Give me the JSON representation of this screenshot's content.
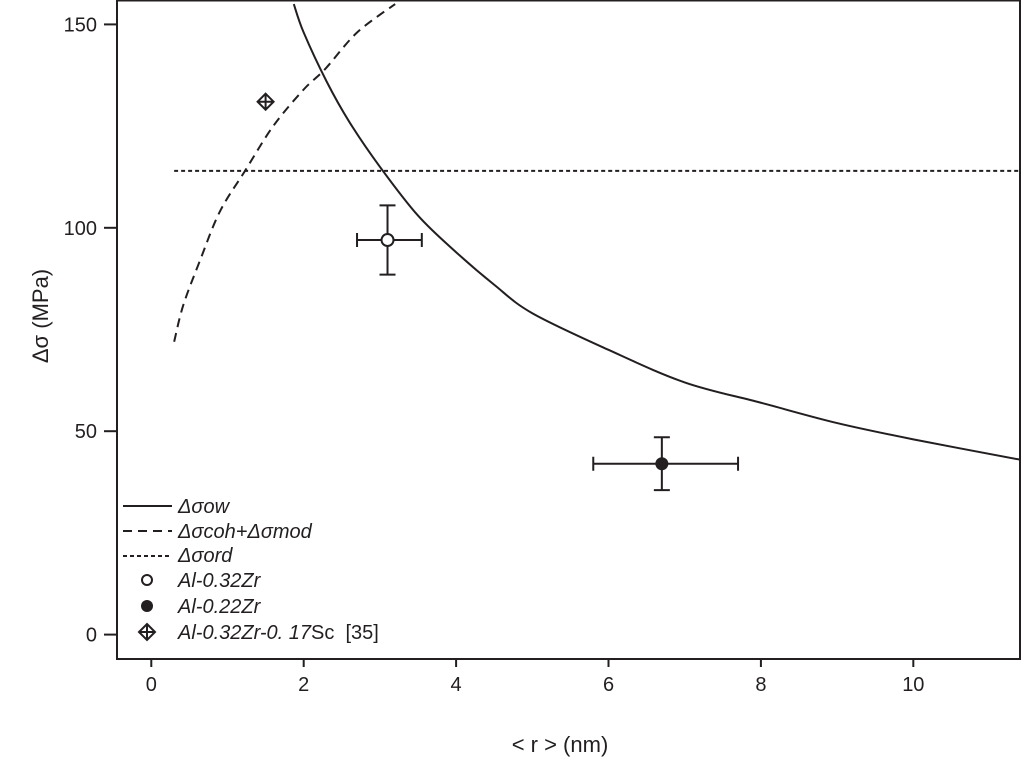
{
  "chart_data": {
    "type": "line",
    "title": "",
    "xlabel": "< r > (nm)",
    "ylabel": "Δσ (MPa)",
    "xlim": [
      -0.45,
      11.4
    ],
    "ylim": [
      -6,
      156
    ],
    "x_ticks": [
      "0",
      "2",
      "4",
      "6",
      "8",
      "10"
    ],
    "x_tick_values": [
      0,
      2,
      4,
      6,
      8,
      10
    ],
    "y_ticks": [
      "0",
      "50",
      "100",
      "150"
    ],
    "y_tick_values": [
      0,
      50,
      100,
      150
    ],
    "grid": false,
    "legend_placement": "bottom-left",
    "color": "#231f20",
    "series": [
      {
        "name": "Δσow",
        "style": "solid",
        "x": [
          1.87,
          2.0,
          2.3,
          2.6,
          3.0,
          3.5,
          4.0,
          4.5,
          5.0,
          6.0,
          7.0,
          8.0,
          9.0,
          10.0,
          11.4
        ],
        "y": [
          155,
          148,
          136,
          126,
          115,
          103,
          94,
          86,
          79,
          70,
          62,
          57,
          52,
          48,
          43
        ]
      },
      {
        "name": "Δσcoh+Δσmod",
        "style": "dashed",
        "x": [
          0.3,
          0.42,
          0.64,
          0.9,
          1.23,
          1.6,
          2.0,
          2.28,
          2.7,
          3.2
        ],
        "y": [
          72,
          81,
          92,
          104,
          114,
          125,
          134,
          139,
          148,
          155
        ]
      },
      {
        "name": "Δσord",
        "style": "dotted",
        "x": [
          0.3,
          11.4
        ],
        "y": [
          114,
          114
        ]
      }
    ],
    "points": [
      {
        "name": "Al-0.32Zr",
        "marker": "open-circle",
        "x": 3.1,
        "y": 97,
        "x_err": [
          2.7,
          3.55
        ],
        "y_err": [
          88.5,
          105.5
        ]
      },
      {
        "name": "Al-0.22Zr",
        "marker": "filled-circle",
        "x": 6.7,
        "y": 42,
        "x_err": [
          5.8,
          7.7
        ],
        "y_err": [
          35.5,
          48.5
        ]
      },
      {
        "name": "Al-0.32Zr-0. 17Sc  [35]",
        "marker": "crossed-diamond",
        "x": 1.5,
        "y": 131
      }
    ],
    "legend": {
      "ow": "Δσow",
      "cohmod": "Δσcoh+Δσmod",
      "ord": "Δσord",
      "p1": "Al-0.32Zr",
      "p2": "Al-0.22Zr",
      "p3_italic": "Al-0.32Zr-0. 17",
      "p3_regular": "Sc  [35]"
    }
  }
}
